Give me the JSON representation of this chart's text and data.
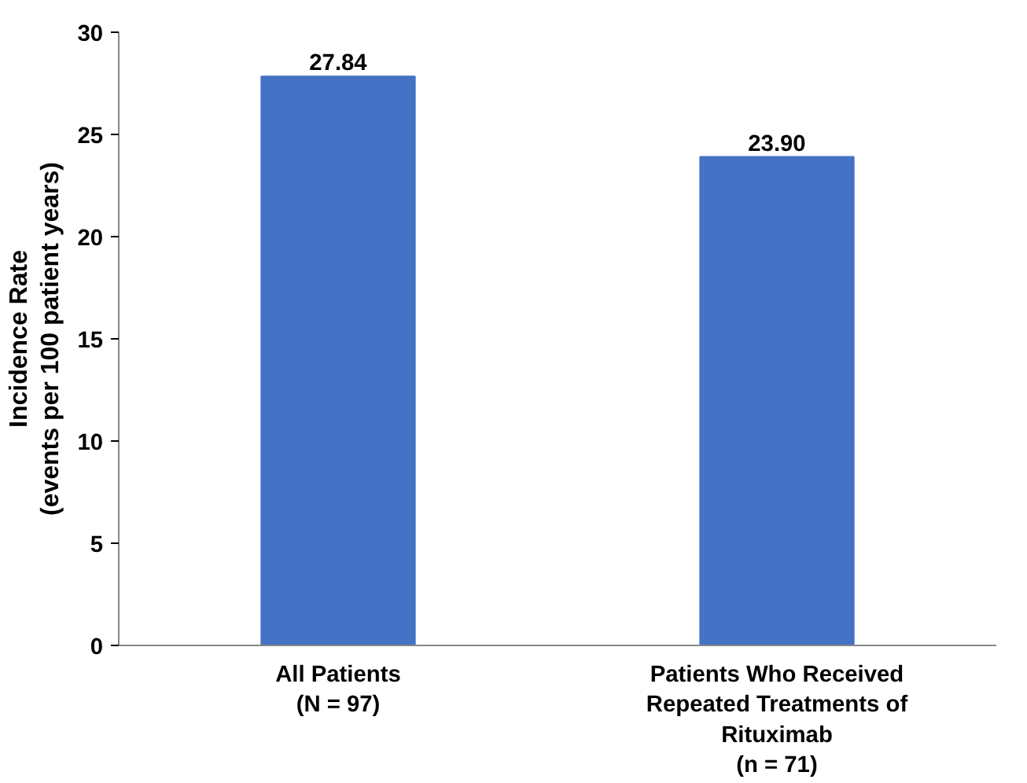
{
  "chart_data": {
    "type": "bar",
    "categories": [
      "All Patients\n(N = 97)",
      "Patients Who Received\nRepeated Treatments of\nRituximab\n(n = 71)"
    ],
    "values": [
      27.84,
      23.9
    ],
    "value_labels": [
      "27.84",
      "23.90"
    ],
    "color": "#4472c4",
    "ylabel": "Incidence Rate\n(events per 100 patient years)",
    "ylim": [
      0,
      30
    ],
    "yticks": [
      0,
      5,
      10,
      15,
      20,
      25,
      30
    ],
    "grid": false
  }
}
